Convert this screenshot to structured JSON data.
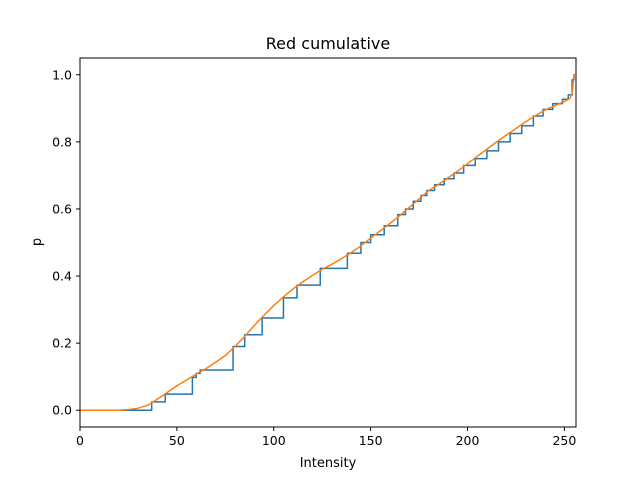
{
  "chart_data": {
    "type": "line",
    "title": "Red cumulative",
    "xlabel": "Intensity",
    "ylabel": "p",
    "xlim": [
      0,
      256
    ],
    "ylim": [
      -0.05,
      1.05
    ],
    "xticks": [
      0,
      50,
      100,
      150,
      200,
      250
    ],
    "yticks": [
      0.0,
      0.2,
      0.4,
      0.6,
      0.8,
      1.0
    ],
    "xtick_labels": [
      "0",
      "50",
      "100",
      "150",
      "200",
      "250"
    ],
    "ytick_labels": [
      "0.0",
      "0.2",
      "0.4",
      "0.6",
      "0.8",
      "1.0"
    ],
    "grid": false,
    "legend": "none",
    "series": [
      {
        "style": "step",
        "color": "#1f77b4",
        "points": [
          [
            0,
            0.0
          ],
          [
            37,
            0.0
          ],
          [
            37,
            0.025
          ],
          [
            44,
            0.025
          ],
          [
            44,
            0.048
          ],
          [
            58,
            0.048
          ],
          [
            58,
            0.098
          ],
          [
            60,
            0.098
          ],
          [
            60,
            0.11
          ],
          [
            62,
            0.11
          ],
          [
            62,
            0.12
          ],
          [
            79,
            0.12
          ],
          [
            79,
            0.19
          ],
          [
            85,
            0.19
          ],
          [
            85,
            0.225
          ],
          [
            94,
            0.225
          ],
          [
            94,
            0.275
          ],
          [
            105,
            0.275
          ],
          [
            105,
            0.335
          ],
          [
            112,
            0.335
          ],
          [
            112,
            0.373
          ],
          [
            124,
            0.373
          ],
          [
            124,
            0.423
          ],
          [
            138,
            0.423
          ],
          [
            138,
            0.468
          ],
          [
            145,
            0.468
          ],
          [
            145,
            0.5
          ],
          [
            150,
            0.5
          ],
          [
            150,
            0.523
          ],
          [
            157,
            0.523
          ],
          [
            157,
            0.55
          ],
          [
            164,
            0.55
          ],
          [
            164,
            0.583
          ],
          [
            168,
            0.583
          ],
          [
            168,
            0.6
          ],
          [
            172,
            0.6
          ],
          [
            172,
            0.623
          ],
          [
            176,
            0.623
          ],
          [
            176,
            0.64
          ],
          [
            179,
            0.64
          ],
          [
            179,
            0.655
          ],
          [
            183,
            0.655
          ],
          [
            183,
            0.672
          ],
          [
            188,
            0.672
          ],
          [
            188,
            0.69
          ],
          [
            193,
            0.69
          ],
          [
            193,
            0.707
          ],
          [
            198,
            0.707
          ],
          [
            198,
            0.73
          ],
          [
            204,
            0.73
          ],
          [
            204,
            0.75
          ],
          [
            210,
            0.75
          ],
          [
            210,
            0.773
          ],
          [
            216,
            0.773
          ],
          [
            216,
            0.8
          ],
          [
            222,
            0.8
          ],
          [
            222,
            0.825
          ],
          [
            228,
            0.825
          ],
          [
            228,
            0.848
          ],
          [
            234,
            0.848
          ],
          [
            234,
            0.877
          ],
          [
            239,
            0.877
          ],
          [
            239,
            0.897
          ],
          [
            244,
            0.897
          ],
          [
            244,
            0.914
          ],
          [
            249,
            0.914
          ],
          [
            249,
            0.927
          ],
          [
            252,
            0.927
          ],
          [
            252,
            0.94
          ],
          [
            254,
            0.94
          ],
          [
            254,
            0.985
          ],
          [
            255,
            0.985
          ],
          [
            255,
            1.0
          ]
        ]
      },
      {
        "style": "line",
        "color": "#ff7f0e",
        "points": [
          [
            0,
            0.0
          ],
          [
            10,
            0.0
          ],
          [
            20,
            0.0
          ],
          [
            25,
            0.002
          ],
          [
            30,
            0.006
          ],
          [
            35,
            0.015
          ],
          [
            40,
            0.033
          ],
          [
            45,
            0.053
          ],
          [
            50,
            0.073
          ],
          [
            55,
            0.09
          ],
          [
            60,
            0.108
          ],
          [
            65,
            0.124
          ],
          [
            70,
            0.143
          ],
          [
            75,
            0.163
          ],
          [
            80,
            0.19
          ],
          [
            85,
            0.22
          ],
          [
            90,
            0.253
          ],
          [
            95,
            0.283
          ],
          [
            100,
            0.312
          ],
          [
            105,
            0.338
          ],
          [
            110,
            0.362
          ],
          [
            115,
            0.383
          ],
          [
            120,
            0.402
          ],
          [
            125,
            0.42
          ],
          [
            130,
            0.435
          ],
          [
            135,
            0.452
          ],
          [
            140,
            0.47
          ],
          [
            145,
            0.49
          ],
          [
            150,
            0.513
          ],
          [
            155,
            0.535
          ],
          [
            160,
            0.557
          ],
          [
            165,
            0.58
          ],
          [
            170,
            0.605
          ],
          [
            175,
            0.63
          ],
          [
            180,
            0.655
          ],
          [
            185,
            0.673
          ],
          [
            190,
            0.693
          ],
          [
            195,
            0.713
          ],
          [
            200,
            0.735
          ],
          [
            205,
            0.757
          ],
          [
            210,
            0.778
          ],
          [
            215,
            0.8
          ],
          [
            220,
            0.82
          ],
          [
            225,
            0.84
          ],
          [
            230,
            0.86
          ],
          [
            235,
            0.878
          ],
          [
            240,
            0.895
          ],
          [
            245,
            0.908
          ],
          [
            250,
            0.92
          ],
          [
            253,
            0.93
          ],
          [
            254,
            0.945
          ],
          [
            255,
            1.0
          ]
        ]
      }
    ]
  }
}
